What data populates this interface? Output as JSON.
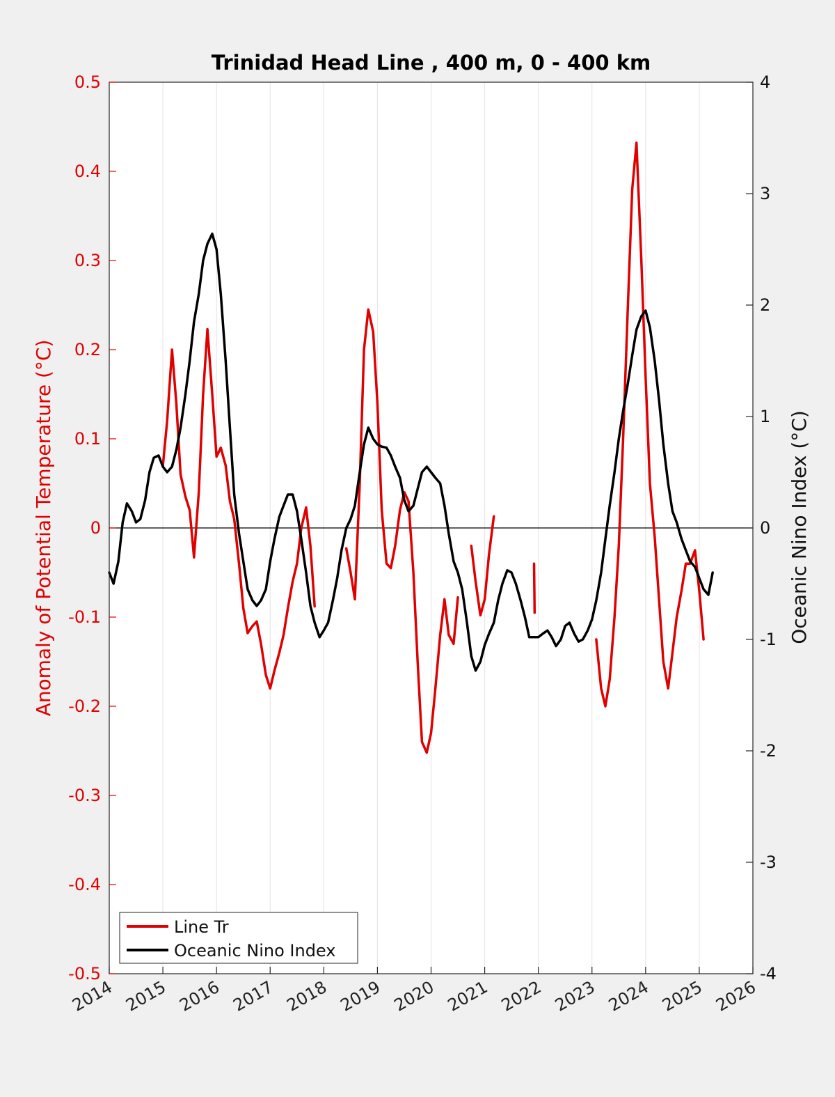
{
  "chart_data": {
    "type": "line",
    "title": "Trinidad Head Line , 400 m, 0 - 400 km",
    "ylabel_left": "Anomaly of Potential Temperature (°C)",
    "ylabel_right": "Oceanic Nino Index (°C)",
    "xlabel": "",
    "xlim": [
      2014,
      2026
    ],
    "ylim_left": [
      -0.5,
      0.5
    ],
    "ylim_right": [
      -4,
      4
    ],
    "x_ticks": [
      "2014",
      "2015",
      "2016",
      "2017",
      "2018",
      "2019",
      "2020",
      "2021",
      "2022",
      "2023",
      "2024",
      "2025",
      "2026"
    ],
    "y_left_ticks": [
      "0.5",
      "0.4",
      "0.3",
      "0.2",
      "0.1",
      "0",
      "-0.1",
      "-0.2",
      "-0.3",
      "-0.4",
      "-0.5"
    ],
    "y_right_ticks": [
      "4",
      "3",
      "2",
      "1",
      "0",
      "-1",
      "-2",
      "-3",
      "-4"
    ],
    "grid": "vertical",
    "legend_position": "bottom-left",
    "colors": {
      "line_tr": "#e00000",
      "oni": "#000000"
    },
    "series": [
      {
        "name": "Line Tr",
        "axis": "left",
        "segments": [
          [
            [
              2015.0,
              0.07
            ],
            [
              2015.08,
              0.12
            ],
            [
              2015.17,
              0.2
            ],
            [
              2015.25,
              0.14
            ],
            [
              2015.33,
              0.06
            ],
            [
              2015.42,
              0.035
            ],
            [
              2015.5,
              0.02
            ],
            [
              2015.58,
              -0.033
            ],
            [
              2015.67,
              0.04
            ],
            [
              2015.75,
              0.15
            ],
            [
              2015.83,
              0.223
            ],
            [
              2015.92,
              0.15
            ],
            [
              2016.0,
              0.08
            ],
            [
              2016.08,
              0.09
            ],
            [
              2016.17,
              0.07
            ],
            [
              2016.25,
              0.03
            ],
            [
              2016.33,
              0.01
            ],
            [
              2016.42,
              -0.04
            ],
            [
              2016.5,
              -0.09
            ],
            [
              2016.58,
              -0.118
            ],
            [
              2016.67,
              -0.11
            ],
            [
              2016.75,
              -0.105
            ],
            [
              2016.83,
              -0.13
            ],
            [
              2016.92,
              -0.165
            ],
            [
              2017.0,
              -0.18
            ],
            [
              2017.08,
              -0.16
            ],
            [
              2017.17,
              -0.14
            ],
            [
              2017.25,
              -0.12
            ],
            [
              2017.33,
              -0.09
            ],
            [
              2017.42,
              -0.06
            ],
            [
              2017.5,
              -0.04
            ],
            [
              2017.58,
              0.0
            ],
            [
              2017.67,
              0.023
            ],
            [
              2017.75,
              -0.02
            ],
            [
              2017.83,
              -0.088
            ]
          ],
          [
            [
              2018.42,
              -0.023
            ],
            [
              2018.5,
              -0.05
            ],
            [
              2018.58,
              -0.08
            ],
            [
              2018.67,
              0.05
            ],
            [
              2018.75,
              0.2
            ],
            [
              2018.83,
              0.245
            ],
            [
              2018.92,
              0.22
            ],
            [
              2019.0,
              0.14
            ],
            [
              2019.08,
              0.02
            ],
            [
              2019.17,
              -0.04
            ],
            [
              2019.25,
              -0.045
            ],
            [
              2019.33,
              -0.02
            ],
            [
              2019.42,
              0.02
            ],
            [
              2019.5,
              0.04
            ],
            [
              2019.58,
              0.03
            ],
            [
              2019.67,
              -0.05
            ],
            [
              2019.75,
              -0.15
            ],
            [
              2019.83,
              -0.24
            ],
            [
              2019.92,
              -0.252
            ],
            [
              2020.0,
              -0.23
            ],
            [
              2020.08,
              -0.18
            ],
            [
              2020.17,
              -0.12
            ],
            [
              2020.25,
              -0.08
            ],
            [
              2020.33,
              -0.12
            ],
            [
              2020.42,
              -0.13
            ],
            [
              2020.5,
              -0.078
            ]
          ],
          [
            [
              2020.75,
              -0.02
            ],
            [
              2020.83,
              -0.06
            ],
            [
              2020.92,
              -0.098
            ],
            [
              2021.0,
              -0.08
            ],
            [
              2021.08,
              -0.03
            ],
            [
              2021.17,
              0.013
            ]
          ],
          [
            [
              2021.92,
              -0.04
            ],
            [
              2021.93,
              -0.095
            ]
          ],
          [
            [
              2023.08,
              -0.125
            ],
            [
              2023.17,
              -0.18
            ],
            [
              2023.25,
              -0.2
            ],
            [
              2023.33,
              -0.17
            ],
            [
              2023.42,
              -0.1
            ],
            [
              2023.5,
              -0.02
            ],
            [
              2023.58,
              0.1
            ],
            [
              2023.67,
              0.25
            ],
            [
              2023.75,
              0.38
            ],
            [
              2023.83,
              0.432
            ],
            [
              2023.92,
              0.3
            ],
            [
              2024.0,
              0.17
            ],
            [
              2024.08,
              0.05
            ],
            [
              2024.17,
              -0.01
            ],
            [
              2024.25,
              -0.08
            ],
            [
              2024.33,
              -0.15
            ],
            [
              2024.42,
              -0.18
            ],
            [
              2024.5,
              -0.14
            ],
            [
              2024.58,
              -0.1
            ],
            [
              2024.67,
              -0.07
            ],
            [
              2024.75,
              -0.04
            ],
            [
              2024.83,
              -0.04
            ],
            [
              2024.92,
              -0.025
            ],
            [
              2025.0,
              -0.07
            ],
            [
              2025.08,
              -0.125
            ]
          ]
        ]
      },
      {
        "name": "Oceanic Nino Index",
        "axis": "right",
        "segments": [
          [
            [
              2014.0,
              -0.4
            ],
            [
              2014.08,
              -0.5
            ],
            [
              2014.17,
              -0.3
            ],
            [
              2014.25,
              0.05
            ],
            [
              2014.33,
              0.22
            ],
            [
              2014.42,
              0.15
            ],
            [
              2014.5,
              0.05
            ],
            [
              2014.58,
              0.08
            ],
            [
              2014.67,
              0.25
            ],
            [
              2014.75,
              0.5
            ],
            [
              2014.83,
              0.63
            ],
            [
              2014.92,
              0.65
            ],
            [
              2015.0,
              0.55
            ],
            [
              2015.08,
              0.5
            ],
            [
              2015.17,
              0.55
            ],
            [
              2015.25,
              0.7
            ],
            [
              2015.33,
              0.9
            ],
            [
              2015.42,
              1.2
            ],
            [
              2015.5,
              1.5
            ],
            [
              2015.58,
              1.85
            ],
            [
              2015.67,
              2.1
            ],
            [
              2015.75,
              2.4
            ],
            [
              2015.83,
              2.55
            ],
            [
              2015.92,
              2.64
            ],
            [
              2016.0,
              2.5
            ],
            [
              2016.08,
              2.1
            ],
            [
              2016.17,
              1.5
            ],
            [
              2016.25,
              0.9
            ],
            [
              2016.33,
              0.3
            ],
            [
              2016.42,
              -0.05
            ],
            [
              2016.5,
              -0.3
            ],
            [
              2016.58,
              -0.55
            ],
            [
              2016.67,
              -0.65
            ],
            [
              2016.75,
              -0.7
            ],
            [
              2016.83,
              -0.65
            ],
            [
              2016.92,
              -0.55
            ],
            [
              2017.0,
              -0.3
            ],
            [
              2017.08,
              -0.1
            ],
            [
              2017.17,
              0.1
            ],
            [
              2017.25,
              0.2
            ],
            [
              2017.33,
              0.3
            ],
            [
              2017.42,
              0.3
            ],
            [
              2017.5,
              0.15
            ],
            [
              2017.58,
              -0.1
            ],
            [
              2017.67,
              -0.4
            ],
            [
              2017.75,
              -0.7
            ],
            [
              2017.83,
              -0.85
            ],
            [
              2017.92,
              -0.98
            ],
            [
              2018.0,
              -0.92
            ],
            [
              2018.08,
              -0.85
            ],
            [
              2018.17,
              -0.65
            ],
            [
              2018.25,
              -0.45
            ],
            [
              2018.33,
              -0.2
            ],
            [
              2018.42,
              0.0
            ],
            [
              2018.5,
              0.08
            ],
            [
              2018.58,
              0.2
            ],
            [
              2018.67,
              0.5
            ],
            [
              2018.75,
              0.75
            ],
            [
              2018.83,
              0.9
            ],
            [
              2018.92,
              0.8
            ],
            [
              2019.0,
              0.75
            ],
            [
              2019.08,
              0.73
            ],
            [
              2019.17,
              0.72
            ],
            [
              2019.25,
              0.65
            ],
            [
              2019.33,
              0.55
            ],
            [
              2019.42,
              0.45
            ],
            [
              2019.5,
              0.25
            ],
            [
              2019.58,
              0.15
            ],
            [
              2019.67,
              0.2
            ],
            [
              2019.75,
              0.35
            ],
            [
              2019.83,
              0.5
            ],
            [
              2019.92,
              0.55
            ],
            [
              2020.0,
              0.5
            ],
            [
              2020.08,
              0.45
            ],
            [
              2020.17,
              0.4
            ],
            [
              2020.25,
              0.2
            ],
            [
              2020.33,
              -0.05
            ],
            [
              2020.42,
              -0.3
            ],
            [
              2020.5,
              -0.4
            ],
            [
              2020.58,
              -0.55
            ],
            [
              2020.67,
              -0.85
            ],
            [
              2020.75,
              -1.15
            ],
            [
              2020.83,
              -1.28
            ],
            [
              2020.92,
              -1.2
            ],
            [
              2021.0,
              -1.05
            ],
            [
              2021.08,
              -0.95
            ],
            [
              2021.17,
              -0.85
            ],
            [
              2021.25,
              -0.65
            ],
            [
              2021.33,
              -0.5
            ],
            [
              2021.42,
              -0.38
            ],
            [
              2021.5,
              -0.4
            ],
            [
              2021.58,
              -0.5
            ],
            [
              2021.67,
              -0.65
            ],
            [
              2021.75,
              -0.8
            ],
            [
              2021.83,
              -0.98
            ],
            [
              2021.92,
              -0.98
            ],
            [
              2022.0,
              -0.98
            ],
            [
              2022.08,
              -0.95
            ],
            [
              2022.17,
              -0.92
            ],
            [
              2022.25,
              -0.98
            ],
            [
              2022.33,
              -1.06
            ],
            [
              2022.42,
              -1.0
            ],
            [
              2022.5,
              -0.88
            ],
            [
              2022.58,
              -0.85
            ],
            [
              2022.67,
              -0.95
            ],
            [
              2022.75,
              -1.02
            ],
            [
              2022.83,
              -1.0
            ],
            [
              2022.92,
              -0.92
            ],
            [
              2023.0,
              -0.82
            ],
            [
              2023.08,
              -0.65
            ],
            [
              2023.17,
              -0.4
            ],
            [
              2023.25,
              -0.1
            ],
            [
              2023.33,
              0.2
            ],
            [
              2023.42,
              0.5
            ],
            [
              2023.5,
              0.8
            ],
            [
              2023.58,
              1.05
            ],
            [
              2023.67,
              1.3
            ],
            [
              2023.75,
              1.55
            ],
            [
              2023.83,
              1.78
            ],
            [
              2023.92,
              1.9
            ],
            [
              2024.0,
              1.95
            ],
            [
              2024.08,
              1.8
            ],
            [
              2024.17,
              1.5
            ],
            [
              2024.25,
              1.15
            ],
            [
              2024.33,
              0.75
            ],
            [
              2024.42,
              0.4
            ],
            [
              2024.5,
              0.15
            ],
            [
              2024.58,
              0.05
            ],
            [
              2024.67,
              -0.1
            ],
            [
              2024.75,
              -0.2
            ],
            [
              2024.83,
              -0.3
            ],
            [
              2024.92,
              -0.35
            ],
            [
              2025.0,
              -0.45
            ],
            [
              2025.08,
              -0.55
            ],
            [
              2025.17,
              -0.6
            ],
            [
              2025.25,
              -0.4
            ]
          ]
        ]
      }
    ]
  }
}
